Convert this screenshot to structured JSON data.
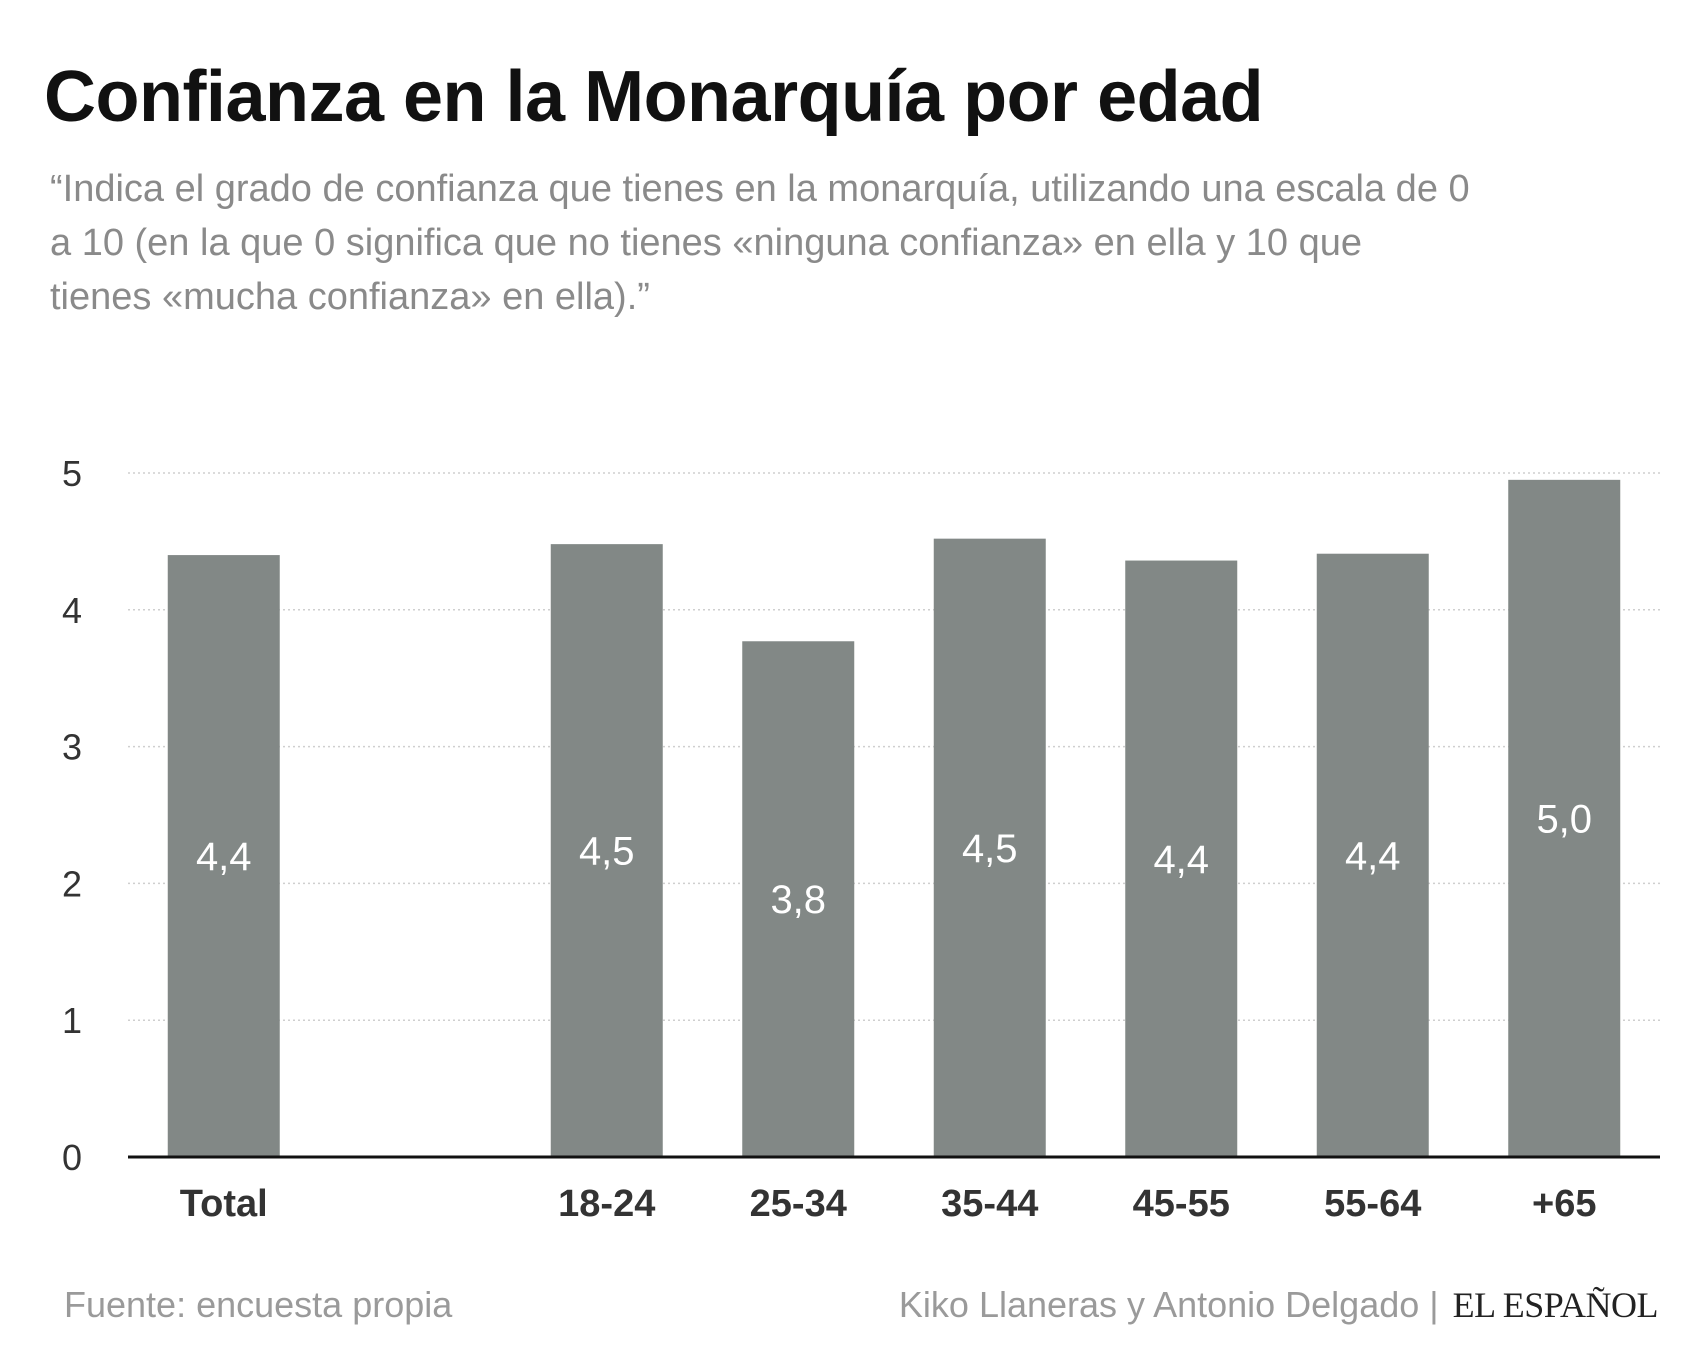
{
  "header": {
    "title": "Confianza en la Monarquía por edad",
    "subtitle": "“Indica el grado de confianza que tienes en la monarquía, utilizando una escala de 0 a 10 (en la que 0 significa que no tienes «ninguna confianza» en ella y 10 que tienes «mucha confianza» en ella).”"
  },
  "footer": {
    "source": "Fuente: encuesta propia",
    "authors": "Kiko Llaneras y Antonio Delgado",
    "separator": "|",
    "brand": "EL ESPAÑOL"
  },
  "chart_data": {
    "type": "bar",
    "title": "Confianza en la Monarquía por edad",
    "categories": [
      "Total",
      "",
      "18-24",
      "25-34",
      "35-44",
      "45-55",
      "55-64",
      "+65"
    ],
    "values": [
      4.4,
      null,
      4.5,
      3.8,
      4.5,
      4.4,
      4.4,
      5.0
    ],
    "value_labels": [
      "4,4",
      "",
      "4,5",
      "3,8",
      "4,5",
      "4,4",
      "4,4",
      "5,0"
    ],
    "exact_heights": [
      4.4,
      null,
      4.48,
      3.77,
      4.52,
      4.36,
      4.41,
      4.95
    ],
    "ylim": [
      0,
      5
    ],
    "yticks": [
      0,
      1,
      2,
      3,
      4,
      5
    ],
    "xlabel": "",
    "ylabel": "",
    "grid": true,
    "bar_color": "#828886",
    "label_color": "#ffffff"
  }
}
